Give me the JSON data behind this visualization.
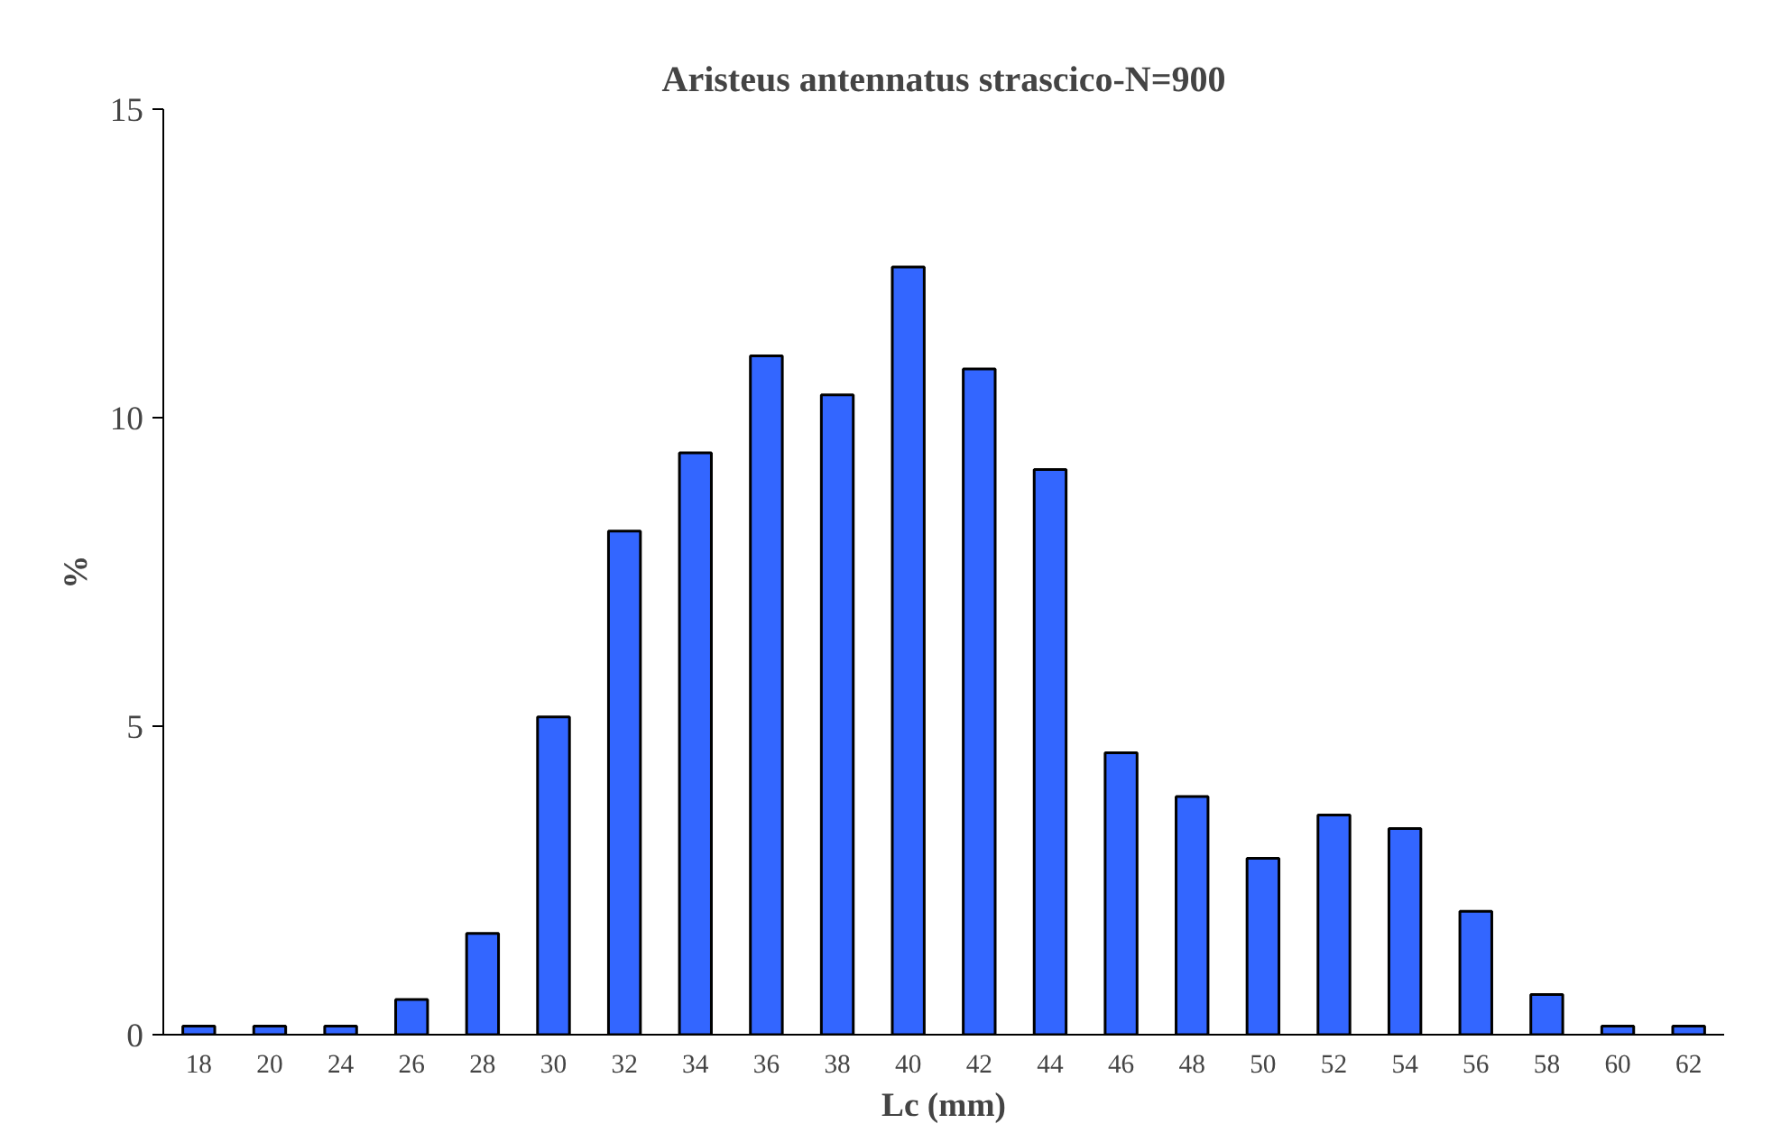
{
  "chart_data": {
    "type": "bar",
    "title": "Aristeus antennatus strascico-N=900",
    "xlabel": "Lc (mm)",
    "ylabel": "%",
    "categories": [
      "18",
      "20",
      "24",
      "26",
      "28",
      "30",
      "32",
      "34",
      "36",
      "38",
      "40",
      "42",
      "44",
      "46",
      "48",
      "50",
      "52",
      "54",
      "56",
      "58",
      "60",
      "62"
    ],
    "values": [
      0.14,
      0.14,
      0.14,
      0.57,
      1.64,
      5.15,
      8.16,
      9.43,
      11.0,
      10.37,
      12.44,
      10.79,
      9.16,
      4.57,
      3.86,
      2.86,
      3.56,
      3.34,
      2.0,
      0.65,
      0.14,
      0.14
    ],
    "color": "#3366ff",
    "ylim": [
      0,
      15
    ],
    "yticks": [
      0,
      5,
      10,
      15
    ]
  }
}
